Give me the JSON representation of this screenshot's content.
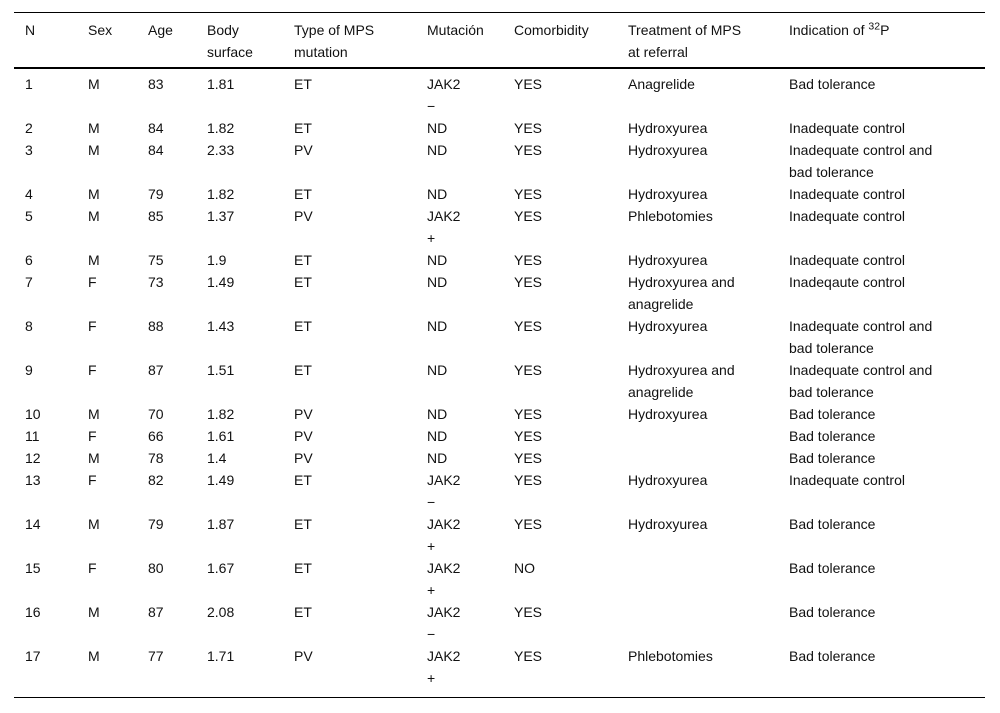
{
  "table": {
    "columns": [
      {
        "label": "N"
      },
      {
        "label": "Sex"
      },
      {
        "label": "Age"
      },
      {
        "label": "Body\nsurface"
      },
      {
        "label": "Type of MPS\nmutation"
      },
      {
        "label": "Mutación"
      },
      {
        "label": "Comorbidity"
      },
      {
        "label": "Treatment of MPS\nat referral"
      }
    ],
    "indication_header": {
      "prefix": "Indication of ",
      "sup": "32",
      "suffix": "P"
    },
    "rows": [
      [
        "1",
        "M",
        "83",
        "1.81",
        "ET",
        "JAK2\n−",
        "YES",
        "Anagrelide",
        "Bad tolerance"
      ],
      [
        "2",
        "M",
        "84",
        "1.82",
        "ET",
        "ND",
        "YES",
        "Hydroxyurea",
        "Inadequate control"
      ],
      [
        "3",
        "M",
        "84",
        "2.33",
        "PV",
        "ND",
        "YES",
        "Hydroxyurea",
        "Inadequate control and\nbad tolerance"
      ],
      [
        "4",
        "M",
        "79",
        "1.82",
        "ET",
        "ND",
        "YES",
        "Hydroxyurea",
        "Inadequate control"
      ],
      [
        "5",
        "M",
        "85",
        "1.37",
        "PV",
        "JAK2\n+",
        "YES",
        "Phlebotomies",
        "Inadequate control"
      ],
      [
        "6",
        "M",
        "75",
        "1.9",
        "ET",
        "ND",
        "YES",
        "Hydroxyurea",
        "Inadequate control"
      ],
      [
        "7",
        "F",
        "73",
        "1.49",
        "ET",
        "ND",
        "YES",
        "Hydroxyurea and\nanagrelide",
        "Inadeqaute control"
      ],
      [
        "8",
        "F",
        "88",
        "1.43",
        "ET",
        "ND",
        "YES",
        "Hydroxyurea",
        "Inadequate control and\nbad tolerance"
      ],
      [
        "9",
        "F",
        "87",
        "1.51",
        "ET",
        "ND",
        "YES",
        "Hydroxyurea and\nanagrelide",
        "Inadequate control and\nbad tolerance"
      ],
      [
        "10",
        "M",
        "70",
        "1.82",
        "PV",
        "ND",
        "YES",
        "Hydroxyurea",
        "Bad tolerance"
      ],
      [
        "11",
        "F",
        "66",
        "1.61",
        "PV",
        "ND",
        "YES",
        "",
        "Bad tolerance"
      ],
      [
        "12",
        "M",
        "78",
        "1.4",
        "PV",
        "ND",
        "YES",
        "",
        "Bad tolerance"
      ],
      [
        "13",
        "F",
        "82",
        "1.49",
        "ET",
        "JAK2\n−",
        "YES",
        "Hydroxyurea",
        "Inadequate control"
      ],
      [
        "14",
        "M",
        "79",
        "1.87",
        "ET",
        "JAK2\n+",
        "YES",
        "Hydroxyurea",
        "Bad tolerance"
      ],
      [
        "15",
        "F",
        "80",
        "1.67",
        "ET",
        "JAK2\n+",
        "NO",
        "",
        "Bad tolerance"
      ],
      [
        "16",
        "M",
        "87",
        "2.08",
        "ET",
        "JAK2\n−",
        "YES",
        "",
        "Bad tolerance"
      ],
      [
        "17",
        "M",
        "77",
        "1.71",
        "PV",
        "JAK2\n+",
        "YES",
        "Phlebotomies",
        "Bad tolerance"
      ]
    ]
  }
}
